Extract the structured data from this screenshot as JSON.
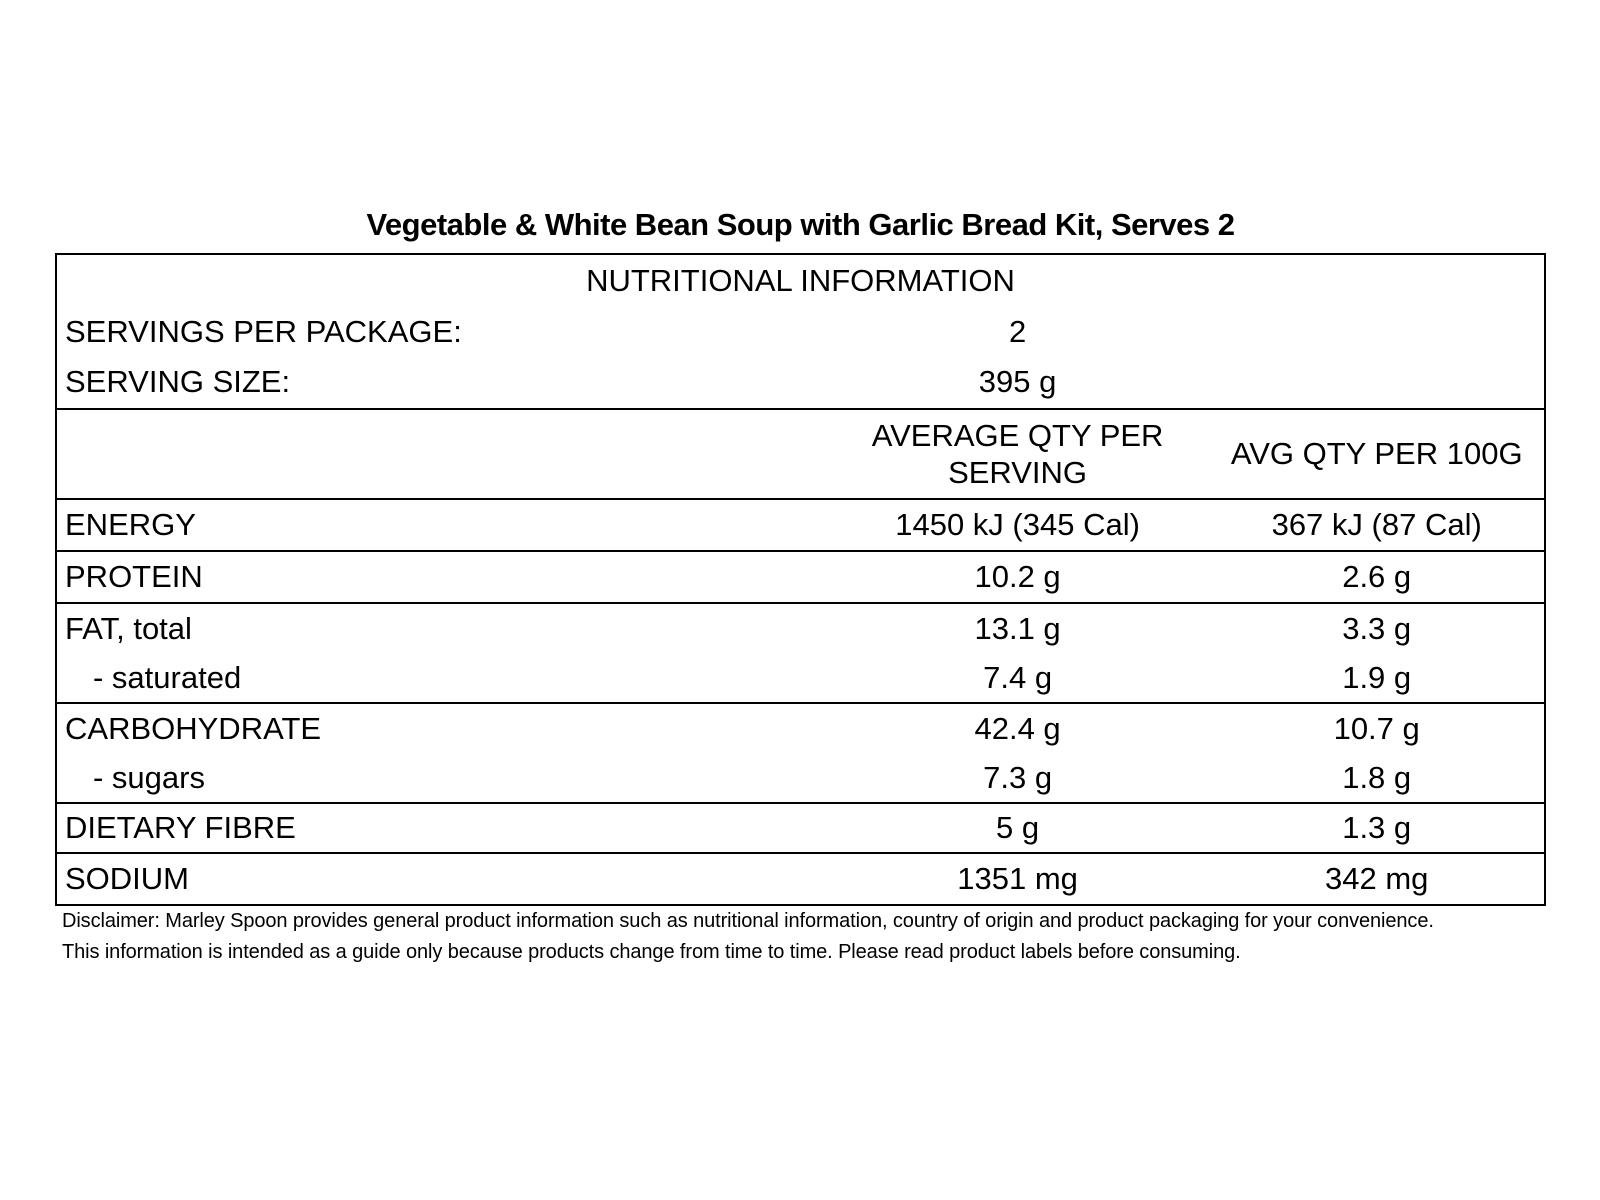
{
  "title": "Vegetable & White Bean Soup with Garlic Bread Kit, Serves 2",
  "table": {
    "header": "NUTRITIONAL INFORMATION",
    "servings_per_package": {
      "label": "SERVINGS PER PACKAGE:",
      "value": "2"
    },
    "serving_size": {
      "label": "SERVING SIZE:",
      "value": "395 g"
    },
    "columns": {
      "per_serving": "AVERAGE QTY PER SERVING",
      "per_100g": "AVG QTY PER 100G"
    },
    "rows": [
      {
        "label": "ENERGY",
        "per_serving": "1450 kJ (345 Cal)",
        "per_100g": "367 kJ (87 Cal)"
      },
      {
        "label": "PROTEIN",
        "per_serving": "10.2 g",
        "per_100g": "2.6 g"
      },
      {
        "label": "FAT, total",
        "per_serving": "13.1 g",
        "per_100g": "3.3 g"
      },
      {
        "label": "- saturated",
        "per_serving": "7.4 g",
        "per_100g": "1.9 g"
      },
      {
        "label": "CARBOHYDRATE",
        "per_serving": "42.4 g",
        "per_100g": "10.7 g"
      },
      {
        "label": "- sugars",
        "per_serving": "7.3 g",
        "per_100g": "1.8 g"
      },
      {
        "label": "DIETARY FIBRE",
        "per_serving": "5 g",
        "per_100g": "1.3 g"
      },
      {
        "label": "SODIUM",
        "per_serving": "1351 mg",
        "per_100g": "342 mg"
      }
    ]
  },
  "disclaimer": {
    "line1": "Disclaimer: Marley Spoon provides general product information such as nutritional information, country of origin and product packaging for your convenience.",
    "line2": "This information is intended as a guide only because products change from time to time. Please read product labels before consuming."
  }
}
